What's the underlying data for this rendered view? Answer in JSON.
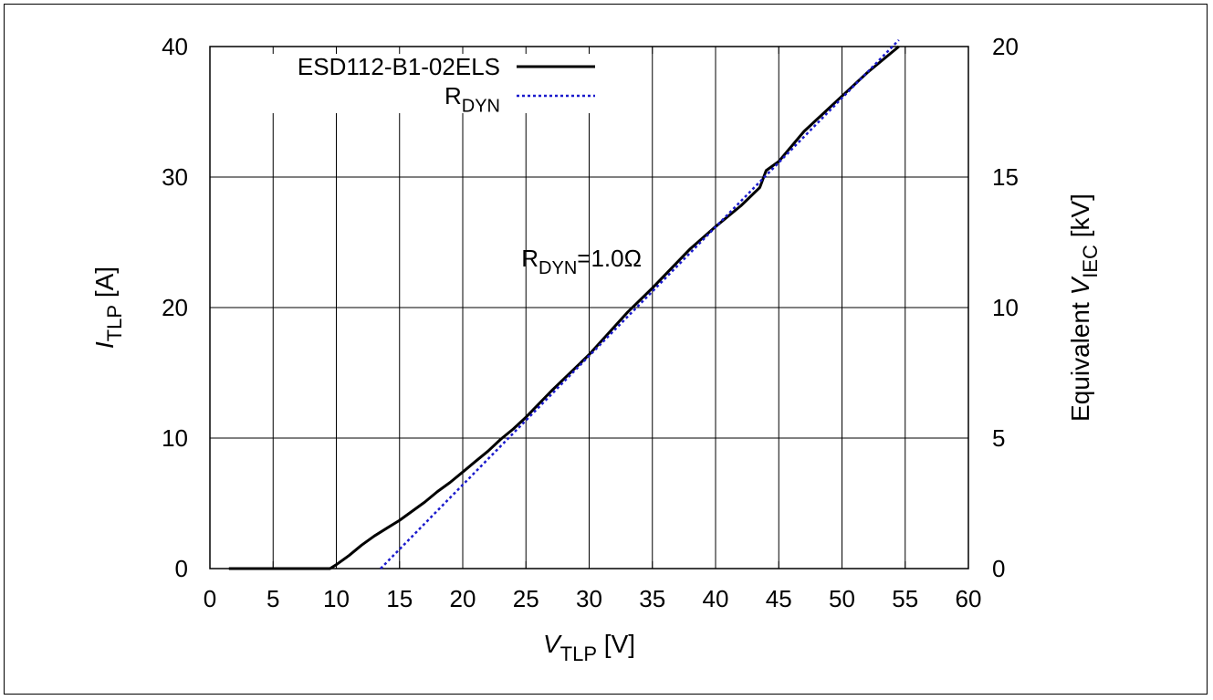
{
  "chart_data": {
    "type": "line",
    "x_axis": {
      "label_symbol": "V",
      "label_subscript": "TLP",
      "label_unit": "[V]",
      "ticks": [
        0,
        5,
        10,
        15,
        20,
        25,
        30,
        35,
        40,
        45,
        50,
        55,
        60
      ],
      "range": [
        0,
        60
      ]
    },
    "y_axis_left": {
      "label_symbol": "I",
      "label_subscript": "TLP",
      "label_unit": "[A]",
      "ticks": [
        0,
        10,
        20,
        30,
        40
      ],
      "range": [
        0,
        40
      ]
    },
    "y_axis_right": {
      "label_prefix": "Equivalent ",
      "label_symbol": "V",
      "label_subscript": "IEC",
      "label_unit": "[kV]",
      "ticks": [
        0,
        5,
        10,
        15,
        20
      ],
      "range": [
        0,
        20
      ]
    },
    "grid": true,
    "legend": {
      "placement": "top-left",
      "entries": [
        {
          "text": "ESD112-B1-02ELS",
          "subscript": "",
          "style": "solid",
          "color": "#000000"
        },
        {
          "text": "R",
          "subscript": "DYN",
          "style": "dotted",
          "color": "#1a1acc"
        }
      ]
    },
    "annotation": {
      "text_main": "R",
      "text_subscript": "DYN",
      "text_rest": "=1.0Ω",
      "x": 31.5,
      "y": 24,
      "color": "#1a1acc"
    },
    "series": [
      {
        "name": "ESD112-B1-02ELS",
        "color": "#000000",
        "style": "solid",
        "points": [
          [
            1.5,
            0
          ],
          [
            9.5,
            0
          ],
          [
            10,
            0.3
          ],
          [
            11,
            1.0
          ],
          [
            12,
            1.8
          ],
          [
            13,
            2.5
          ],
          [
            14,
            3.1
          ],
          [
            15,
            3.7
          ],
          [
            16,
            4.4
          ],
          [
            17,
            5.1
          ],
          [
            18,
            5.9
          ],
          [
            19,
            6.6
          ],
          [
            20,
            7.4
          ],
          [
            21,
            8.2
          ],
          [
            22,
            9.0
          ],
          [
            23,
            9.9
          ],
          [
            24,
            10.7
          ],
          [
            25,
            11.6
          ],
          [
            27,
            13.6
          ],
          [
            30,
            16.4
          ],
          [
            33,
            19.6
          ],
          [
            35,
            21.5
          ],
          [
            38,
            24.5
          ],
          [
            40,
            26.2
          ],
          [
            42,
            27.8
          ],
          [
            43.5,
            29.2
          ],
          [
            44,
            30.5
          ],
          [
            45,
            31.2
          ],
          [
            47,
            33.5
          ],
          [
            50,
            36.2
          ],
          [
            52,
            38
          ],
          [
            54.5,
            40
          ]
        ]
      },
      {
        "name": "R",
        "subscript": "DYN",
        "color": "#1a1acc",
        "style": "dotted",
        "points": [
          [
            13.5,
            0
          ],
          [
            54.5,
            40.5
          ]
        ]
      }
    ]
  }
}
